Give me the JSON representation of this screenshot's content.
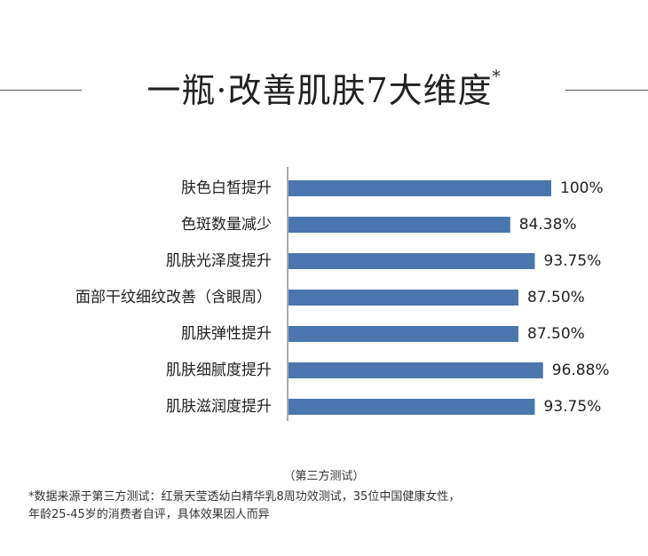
{
  "header": {
    "title": "一瓶·改善肌肤7大维度",
    "title_mark": "*"
  },
  "chart_data": {
    "type": "bar",
    "orientation": "horizontal",
    "categories": [
      "肤色白皙提升",
      "色斑数量减少",
      "肌肤光泽度提升",
      "面部干纹细纹改善（含眼周）",
      "肌肤弹性提升",
      "肌肤细腻度提升",
      "肌肤滋润度提升"
    ],
    "values": [
      100,
      84.38,
      93.75,
      87.5,
      87.5,
      96.88,
      93.75
    ],
    "value_labels": [
      "100%",
      "84.38%",
      "93.75%",
      "87.50%",
      "87.50%",
      "96.88%",
      "93.75%"
    ],
    "xlim": [
      0,
      100
    ],
    "bar_color": "#4a76ad",
    "axis_color": "#555555",
    "grid": false
  },
  "source": "（第三方测试）",
  "footnote": {
    "line1": "*数据来源于第三方测试：红景天莹透幼白精华乳8周功效测试，35位中国健康女性，",
    "line2": "年龄25-45岁的消费者自评，具体效果因人而异"
  }
}
